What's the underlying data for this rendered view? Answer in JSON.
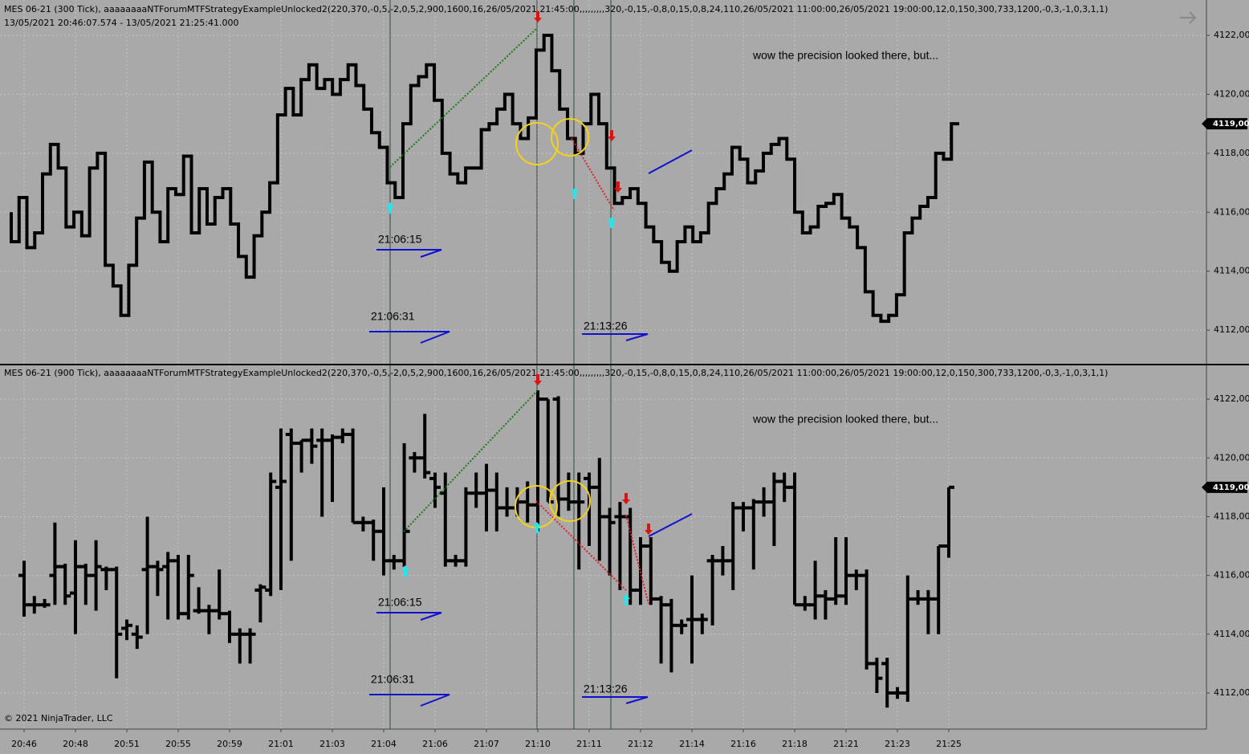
{
  "chart_data": [
    {
      "type": "step",
      "title": "MES 06-21 (300 Tick), aaaaaaaaNTForumMTFStrategyExampleUnlocked2(220,370,-0,5,-2,0,5,2,900,1600,16,26/05/2021 21:45:00,,,,,,,,,320,-0,15,-0,8,0,15,0,8,24,110,26/05/2021 11:00:00,26/05/2021 19:00:00,12,0,150,300,733,1200,-0,3,-1,0,3,1,1)",
      "subtitle": "13/05/2021 20:46:07.574 - 13/05/2021 21:25:41.000",
      "color": "#000000",
      "values": [
        4116,
        4115,
        4116.5,
        4114.8,
        4115.3,
        4117.3,
        4118.3,
        4117.5,
        4115.5,
        4116,
        4115.2,
        4117.5,
        4118,
        4114.2,
        4113.5,
        4112.5,
        4114.2,
        4115.8,
        4117.7,
        4116,
        4115,
        4116.8,
        4116.6,
        4117.9,
        4115.3,
        4116.8,
        4115.6,
        4116.5,
        4116.8,
        4115.6,
        4114.5,
        4113.8,
        4115.2,
        4116,
        4117,
        4119.3,
        4120.2,
        4119.3,
        4120.5,
        4121,
        4120.2,
        4120.5,
        4120,
        4120.5,
        4121,
        4120.3,
        4119.5,
        4118.7,
        4118.2,
        4117,
        4116.5,
        4119,
        4120.3,
        4120.6,
        4121,
        4119.8,
        4118,
        4117.3,
        4117,
        4117.5,
        4117.5,
        4118.8,
        4119,
        4119.5,
        4120,
        4119,
        4118.5,
        4119.2,
        4121.5,
        4122,
        4120.8,
        4119.5,
        4118.5,
        4118,
        4119,
        4120,
        4119,
        4117.5,
        4116.3,
        4116.5,
        4116.8,
        4116.3,
        4115.5,
        4115,
        4114.3,
        4114,
        4115,
        4115.5,
        4115,
        4115.3,
        4116.3,
        4116.8,
        4117.3,
        4118.2,
        4117.8,
        4117,
        4117.4,
        4118,
        4118.3,
        4118.5,
        4117.8,
        4116,
        4115.3,
        4115.5,
        4116.2,
        4116.3,
        4116.6,
        4115.8,
        4115.5,
        4114.8,
        4113.3,
        4112.5,
        4112.3,
        4112.5,
        4113.2,
        4115.3,
        4115.8,
        4116.2,
        4116.5,
        4118,
        4117.8,
        4119
      ],
      "ylim": [
        4110.86,
        4123.2
      ],
      "yticks": [
        {
          "value": 4112,
          "label": "4112,00"
        },
        {
          "value": 4114,
          "label": "4114,00"
        },
        {
          "value": 4116,
          "label": "4116,00"
        },
        {
          "value": 4118,
          "label": "4118,00"
        },
        {
          "value": 4120,
          "label": "4120,00"
        },
        {
          "value": 4122,
          "label": "4122,00"
        }
      ],
      "last_price": {
        "value": 4119,
        "label": "4119,00"
      },
      "annotations": [
        "21:06:15",
        "21:06:31",
        "21:13:26",
        "wow the precision looked there, but..."
      ],
      "grid": true
    },
    {
      "type": "ohlc",
      "title": "MES 06-21 (900 Tick), aaaaaaaaNTForumMTFStrategyExampleUnlocked2(220,370,-0,5,-2,0,5,2,900,1600,16,26/05/2021 21:45:00,,,,,,,,,320,-0,15,-0,8,0,15,0,8,24,110,26/05/2021 11:00:00,26/05/2021 19:00:00,12,0,150,300,733,1200,-0,3,-1,0,3,1,1)",
      "color": "#000000",
      "categories": [
        "20:46",
        null,
        null,
        null,
        null,
        "20:48",
        null,
        null,
        null,
        null,
        "20:51",
        null,
        null,
        null,
        null,
        "20:55",
        null,
        null,
        null,
        null,
        "20:59",
        null,
        null,
        null,
        null,
        "21:01",
        null,
        null,
        null,
        null,
        "21:03",
        null,
        null,
        null,
        null,
        "21:04",
        null,
        null,
        null,
        null,
        "21:06",
        null,
        null,
        null,
        null,
        "21:07",
        null,
        null,
        null,
        null,
        "21:10",
        null,
        null,
        null,
        null,
        "21:11",
        null,
        null,
        null,
        null,
        "21:12",
        null,
        null,
        null,
        null,
        "21:14",
        null,
        null,
        null,
        null,
        "21:16",
        null,
        null,
        null,
        null,
        "21:18",
        null,
        null,
        null,
        null,
        "21:21",
        null,
        null,
        null,
        null,
        "21:23",
        null,
        null,
        null,
        null,
        "21:25"
      ],
      "open": [
        4116,
        4115,
        4115,
        4116,
        4116.3,
        4115.4,
        4116.3,
        4116,
        4116.2,
        4116.2,
        4114.2,
        4114,
        4116.2,
        4116.3,
        4116.3,
        4116.5,
        4114.7,
        4114.8,
        4114.8,
        4114.8,
        4114.7,
        4114,
        4114,
        4115.5,
        4115.5,
        4119,
        4120.8,
        4120.5,
        4120.6,
        4120.6,
        4120.6,
        4120.7,
        4120.8,
        4117.8,
        4117.8,
        4117.5,
        4116.5,
        4116.5,
        4120,
        4120,
        4119.3,
        4118.8,
        4116.5,
        4116.5,
        4118.8,
        4118.8,
        4118.9,
        4118.3,
        4118.3,
        4118.5,
        4118.4,
        4122,
        4122,
        4118.6,
        4118.5,
        4119.3,
        4119,
        4118,
        4118,
        4118,
        4115.5,
        4117,
        4115.2,
        4115,
        4114.3,
        4114.5,
        4114.5,
        4116.5,
        4116.5,
        4116.5,
        4118.3,
        4118.3,
        4118.5,
        4118.5,
        4119.2,
        4119,
        4115,
        4115,
        4115.3,
        4115.2,
        4115.3,
        4116,
        4116,
        4113,
        4113,
        4112,
        4112,
        4115.2,
        4115.2,
        4115.2,
        4117
      ],
      "high": [
        4116.5,
        4115.3,
        4115.2,
        4117.8,
        4116.4,
        4117.2,
        4116.4,
        4117.2,
        4116.3,
        4116.3,
        4114.5,
        4114.3,
        4118,
        4116.5,
        4116.8,
        4116.7,
        4116.7,
        4115.6,
        4115,
        4116.2,
        4114.8,
        4114.2,
        4114.2,
        4115.7,
        4119.5,
        4121,
        4121,
        4120.6,
        4121,
        4121,
        4120.8,
        4121,
        4121,
        4118,
        4117.9,
        4119,
        4116.7,
        4120.5,
        4120.2,
        4121.5,
        4119.5,
        4119.5,
        4116.7,
        4119,
        4119.5,
        4119.8,
        4119.5,
        4119,
        4119,
        4119.2,
        4122.3,
        4122,
        4122.1,
        4119.5,
        4119.5,
        4119.5,
        4120,
        4118.3,
        4118.5,
        4118.3,
        4117.3,
        4117.3,
        4115.3,
        4115.2,
        4114.5,
        4116,
        4114.7,
        4116.7,
        4117,
        4118.5,
        4118.5,
        4118.6,
        4119,
        4119.5,
        4119.5,
        4119.5,
        4115.3,
        4116.5,
        4115.5,
        4117.3,
        4117.3,
        4116.2,
        4116.2,
        4113.2,
        4113.2,
        4112.2,
        4116,
        4115.5,
        4115.5,
        4117,
        4119
      ],
      "low": [
        4114.6,
        4114.7,
        4114.9,
        4115,
        4115,
        4114,
        4115,
        4114.8,
        4115.5,
        4112.5,
        4113.8,
        4113.5,
        4114,
        4115.3,
        4114.5,
        4114.5,
        4114.5,
        4114.7,
        4114,
        4114.5,
        4113.7,
        4113,
        4113,
        4114.4,
        4115.3,
        4115.5,
        4116.5,
        4119.5,
        4119.8,
        4118,
        4118.5,
        4120.5,
        4117.8,
        4117.5,
        4116.5,
        4116,
        4116.2,
        4116.3,
        4119.5,
        4119.3,
        4118.3,
        4116.3,
        4116.3,
        4116.3,
        4118.3,
        4117.5,
        4117.5,
        4118,
        4118,
        4117.8,
        4117.5,
        4118.5,
        4118,
        4118.2,
        4116.2,
        4117,
        4116.5,
        4116,
        4115.5,
        4115,
        4115,
        4115,
        4113,
        4112.7,
        4114,
        4113,
        4114,
        4114.3,
        4116,
        4115.5,
        4117.5,
        4116.2,
        4118,
        4117,
        4118.5,
        4115,
        4114.8,
        4114.5,
        4114.5,
        4115,
        4115,
        4115.5,
        4112.8,
        4112,
        4111.5,
        4111.8,
        4111.7,
        4115,
        4114,
        4114,
        4116.6
      ],
      "close": [
        4115,
        4115,
        4115,
        4116.3,
        4115.3,
        4116.3,
        4116,
        4116.3,
        4116.2,
        4114,
        4114.3,
        4113.9,
        4116.3,
        4116.2,
        4116.5,
        4114.7,
        4116,
        4114.8,
        4114.8,
        4114.7,
        4114,
        4114,
        4114,
        4115.6,
        4119.2,
        4119.2,
        4120.5,
        4120.6,
        4120.4,
        4120.6,
        4120.7,
        4120.8,
        4117.8,
        4117.8,
        4117.5,
        4116.5,
        4116.5,
        4117.5,
        4120,
        4119.5,
        4119,
        4116.5,
        4116.5,
        4118.8,
        4118.8,
        4118.9,
        4118.3,
        4118.3,
        4118.5,
        4118.4,
        4122,
        4118.5,
        4118.6,
        4118.5,
        4118.5,
        4119,
        4118,
        4117.8,
        4118,
        4115.5,
        4117,
        4115.2,
        4115,
        4114.3,
        4114.3,
        4114.5,
        4114.5,
        4116.5,
        4116.5,
        4118.3,
        4118.3,
        4118.5,
        4118.5,
        4119.2,
        4119,
        4115,
        4115,
        4115.3,
        4115.2,
        4115.3,
        4116,
        4116,
        4113,
        4112.5,
        4112,
        4112,
        4115.2,
        4115.2,
        4115.2,
        4117,
        4119
      ],
      "ylim": [
        4110.77,
        4123.15
      ],
      "yticks": [
        {
          "value": 4112,
          "label": "4112,00"
        },
        {
          "value": 4114,
          "label": "4114,00"
        },
        {
          "value": 4116,
          "label": "4116,00"
        },
        {
          "value": 4118,
          "label": "4118,00"
        },
        {
          "value": 4120,
          "label": "4120,00"
        },
        {
          "value": 4122,
          "label": "4122,00"
        }
      ],
      "last_price": {
        "value": 4119,
        "label": "4119,00"
      },
      "annotations": [
        "21:06:15",
        "21:06:31",
        "21:13:26",
        "wow the precision looked there, but..."
      ],
      "grid": true
    }
  ],
  "footer": "© 2021 NinjaTrader, LLC"
}
